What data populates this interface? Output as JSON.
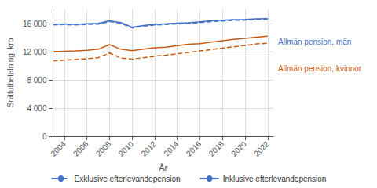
{
  "chart_data": {
    "type": "line",
    "xlabel": "År",
    "ylabel": "Snittutbetalning, kro",
    "x": [
      2003,
      2004,
      2005,
      2006,
      2007,
      2008,
      2009,
      2010,
      2011,
      2012,
      2013,
      2014,
      2015,
      2016,
      2017,
      2018,
      2019,
      2020,
      2021,
      2022
    ],
    "series": [
      {
        "color": "#4472C4",
        "line_style": "solid",
        "values": [
          15900,
          15950,
          15900,
          15970,
          16020,
          16380,
          16150,
          15480,
          15720,
          15900,
          15970,
          16050,
          16100,
          16250,
          16380,
          16470,
          16560,
          16580,
          16680,
          16700
        ]
      },
      {
        "color": "#4472C4",
        "line_style": "dashed",
        "values": [
          15800,
          15850,
          15800,
          15870,
          15920,
          16280,
          16050,
          15380,
          15620,
          15800,
          15870,
          15950,
          16000,
          16150,
          16280,
          16370,
          16460,
          16480,
          16580,
          16600
        ]
      },
      {
        "color": "#C55A11",
        "line_style": "solid",
        "values": [
          12000,
          12050,
          12100,
          12200,
          12350,
          13000,
          12350,
          12150,
          12350,
          12550,
          12650,
          12850,
          13050,
          13150,
          13350,
          13550,
          13750,
          13900,
          14050,
          14200
        ]
      },
      {
        "color": "#C55A11",
        "line_style": "dashed",
        "values": [
          10700,
          10800,
          10900,
          11000,
          11150,
          11800,
          11100,
          10950,
          11150,
          11350,
          11500,
          11700,
          11900,
          12100,
          12300,
          12500,
          12700,
          12900,
          13100,
          13200
        ]
      }
    ],
    "xlim": [
      2003,
      2022.5
    ],
    "xticks": [
      2004,
      2006,
      2008,
      2010,
      2012,
      2014,
      2016,
      2018,
      2020,
      2022
    ],
    "ylim": [
      0,
      18000
    ],
    "yticks": [
      0,
      {
        "value": 4000,
        "label": "4 000"
      },
      {
        "value": 8000,
        "label": "8 000"
      },
      {
        "value": 12000,
        "label": "12 000"
      },
      {
        "value": 16000,
        "label": "16 000"
      }
    ],
    "grid": true,
    "annotations": [
      {
        "text": "Allmän pension, män",
        "color": "#4472C4"
      },
      {
        "text": "Allmän pension, kvinnor",
        "color": "#C55A11"
      }
    ],
    "legend": "bottom",
    "legend_entries": [
      {
        "name": "Exklusive efterlevandepension",
        "line_style": "dashed",
        "color": "#4472C4"
      },
      {
        "name": "Inklusive efterlevandepension",
        "line_style": "solid",
        "color": "#4472C4"
      }
    ]
  }
}
